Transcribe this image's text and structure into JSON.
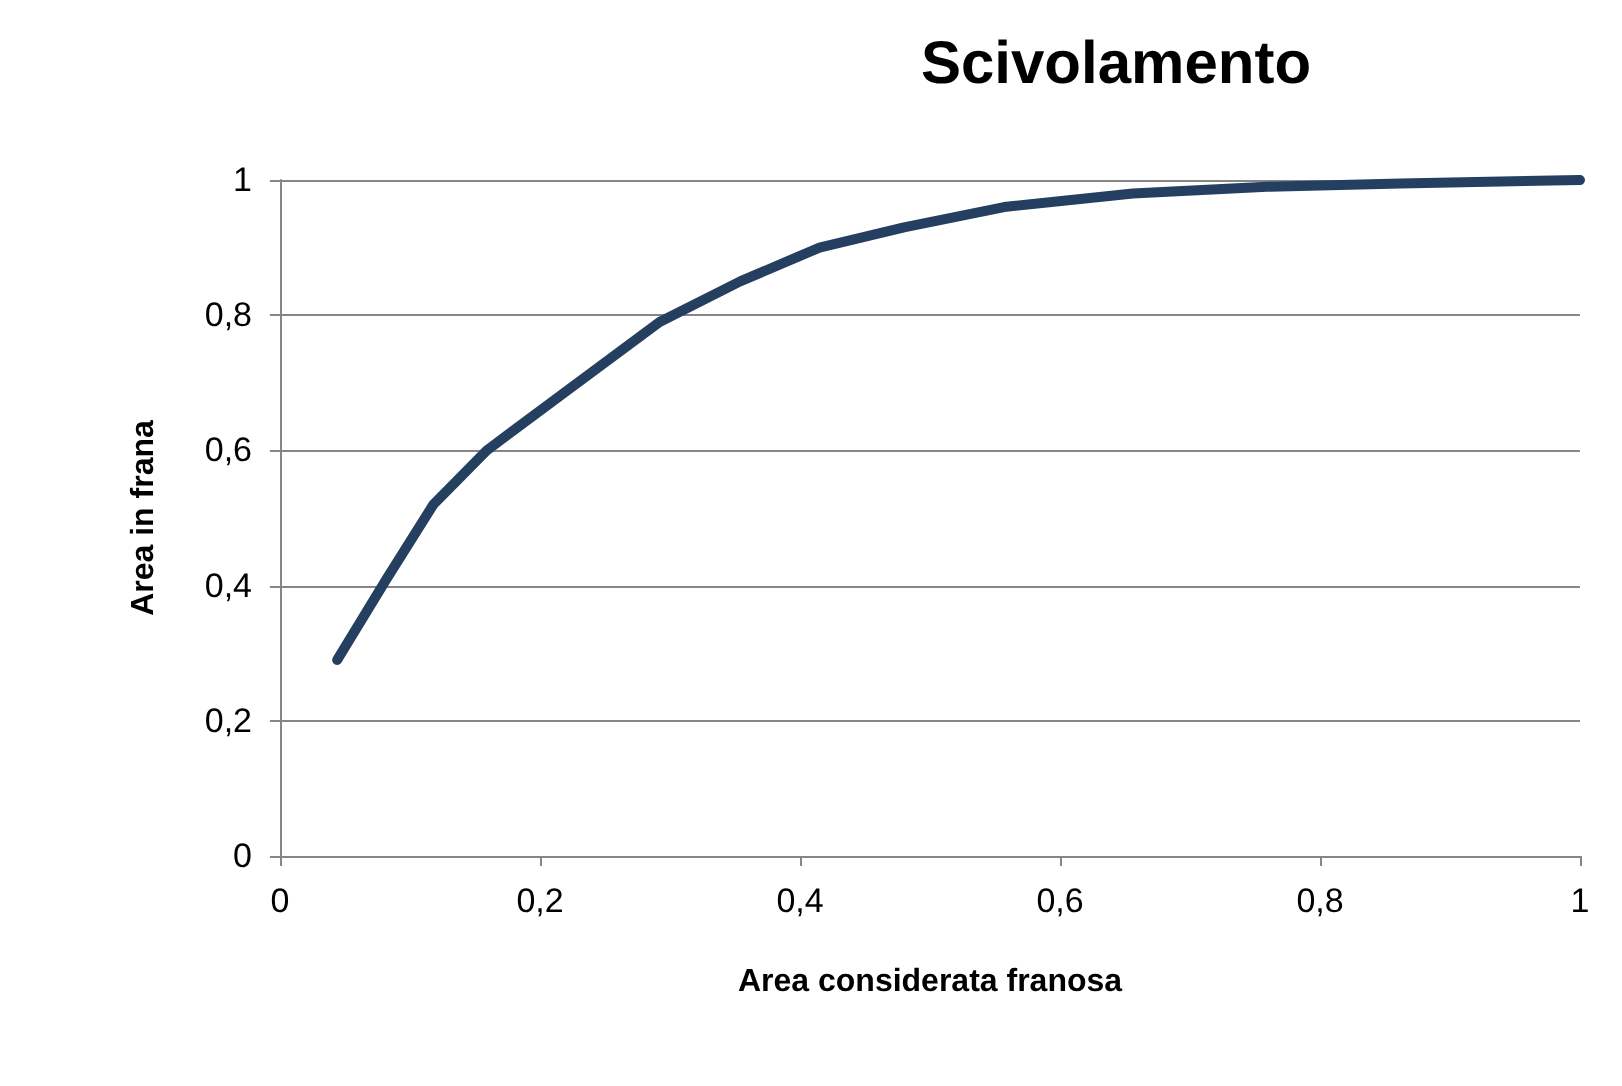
{
  "chart_data": {
    "type": "line",
    "title": "Scivolamento",
    "xlabel": "Area considerata franosa",
    "ylabel": "Area in frana",
    "x": [
      0.044,
      0.082,
      0.118,
      0.159,
      0.215,
      0.292,
      0.354,
      0.415,
      0.48,
      0.557,
      0.656,
      0.759,
      0.862,
      1.0
    ],
    "series": [
      {
        "color": "#243f60",
        "values": [
          0.29,
          0.41,
          0.52,
          0.6,
          0.68,
          0.79,
          0.85,
          0.9,
          0.93,
          0.96,
          0.98,
          0.99,
          0.995,
          1.0
        ]
      }
    ],
    "xlim": [
      0,
      1
    ],
    "xticks": [
      {
        "value": 0,
        "label": "0"
      },
      {
        "value": 0.2,
        "label": "0,2"
      },
      {
        "value": 0.4,
        "label": "0,4"
      },
      {
        "value": 0.6,
        "label": "0,6"
      },
      {
        "value": 0.8,
        "label": "0,8"
      },
      {
        "value": 1,
        "label": "1"
      }
    ],
    "ylim": [
      0,
      1
    ],
    "yticks": [
      {
        "value": 0,
        "label": "0"
      },
      {
        "value": 0.2,
        "label": "0,2"
      },
      {
        "value": 0.4,
        "label": "0,4"
      },
      {
        "value": 0.6,
        "label": "0,6"
      },
      {
        "value": 0.8,
        "label": "0,8"
      },
      {
        "value": 1,
        "label": "1"
      }
    ],
    "grid": "y",
    "marker": "none",
    "line_style": "solid"
  }
}
